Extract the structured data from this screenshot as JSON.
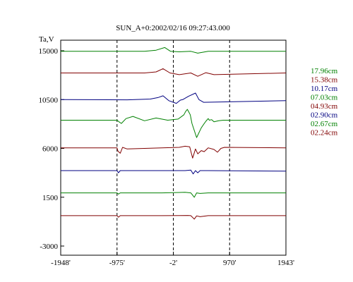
{
  "chart_data": {
    "type": "line",
    "title": "SUN_A+0:2002/02/16 09:27:43.000",
    "ylabel": "Ta,V",
    "xlabel": "",
    "xlim": [
      -1948,
      1943
    ],
    "ylim": [
      -3000,
      15000
    ],
    "xticks": [
      "-1948'",
      "-975'",
      "-2'",
      "970'",
      "1943'"
    ],
    "yticks": [
      "15000",
      "10500",
      "6000",
      "1500",
      "-3000"
    ],
    "grid_x_dashed": [
      -975,
      -2,
      970
    ],
    "legend_position": "right",
    "series": [
      {
        "name": "17.96cm",
        "color": "#008000",
        "baseline": 14950,
        "x": [
          -1948,
          -500,
          -300,
          -150,
          -50,
          100,
          300,
          420,
          600,
          1943
        ],
        "y": [
          14950,
          14950,
          15050,
          15300,
          14950,
          14900,
          14950,
          14780,
          14950,
          14950
        ]
      },
      {
        "name": "15.38cm",
        "color": "#800000",
        "baseline": 12950,
        "x": [
          -1948,
          -500,
          -300,
          -180,
          -60,
          100,
          300,
          420,
          560,
          700,
          1943
        ],
        "y": [
          12950,
          12950,
          13050,
          13350,
          12950,
          12800,
          12950,
          12650,
          12980,
          12800,
          12950
        ]
      },
      {
        "name": "10.17cm",
        "color": "#000080",
        "baseline": 10500,
        "x": [
          -1948,
          -800,
          -400,
          -260,
          -180,
          -80,
          50,
          120,
          160,
          260,
          380,
          440,
          520,
          1943
        ],
        "y": [
          10500,
          10480,
          10550,
          10700,
          10850,
          10400,
          10150,
          10450,
          10500,
          10800,
          11100,
          10500,
          10250,
          10400
        ]
      },
      {
        "name": "07.03cm",
        "color": "#008000",
        "baseline": 8600,
        "x": [
          -1948,
          -975,
          -940,
          -900,
          -820,
          -700,
          -500,
          -300,
          -100,
          80,
          180,
          210,
          240,
          290,
          320,
          400,
          480,
          520,
          560,
          600,
          620,
          660,
          700,
          780,
          860,
          1943
        ],
        "y": [
          8600,
          8600,
          8450,
          8300,
          8750,
          8950,
          8550,
          8800,
          8600,
          8700,
          9100,
          9400,
          9600,
          9100,
          8300,
          7000,
          7900,
          8200,
          8500,
          8750,
          8600,
          8650,
          8450,
          8550,
          8600,
          8600
        ]
      },
      {
        "name": "04.93cm",
        "color": "#800000",
        "baseline": 6050,
        "x": [
          -1948,
          -975,
          -960,
          -920,
          -880,
          -800,
          -500,
          -200,
          100,
          200,
          280,
          330,
          380,
          420,
          480,
          530,
          600,
          700,
          760,
          820,
          880,
          1943
        ],
        "y": [
          6050,
          6050,
          5750,
          5550,
          6100,
          5950,
          6000,
          6050,
          6100,
          6200,
          6150,
          5100,
          5950,
          5500,
          5800,
          5700,
          6050,
          5900,
          5650,
          6000,
          6100,
          6050
        ]
      },
      {
        "name": "02.90cm",
        "color": "#000080",
        "baseline": 3950,
        "x": [
          -1948,
          -975,
          -950,
          -920,
          -800,
          100,
          200,
          300,
          340,
          380,
          420,
          460,
          600,
          1943
        ],
        "y": [
          3950,
          3950,
          3750,
          3950,
          3950,
          3950,
          3950,
          4000,
          3650,
          3950,
          3750,
          3950,
          3950,
          3900
        ]
      },
      {
        "name": "02.67cm",
        "color": "#008000",
        "baseline": 1900,
        "x": [
          -1948,
          -975,
          -950,
          -920,
          -200,
          200,
          300,
          360,
          400,
          460,
          600,
          1943
        ],
        "y": [
          1900,
          1900,
          1780,
          1900,
          1900,
          1950,
          1900,
          1500,
          1900,
          1850,
          1900,
          1900
        ]
      },
      {
        "name": "02.24cm",
        "color": "#800000",
        "baseline": -200,
        "x": [
          -1948,
          -975,
          -950,
          -920,
          -200,
          250,
          300,
          360,
          400,
          460,
          600,
          1943
        ],
        "y": [
          -200,
          -200,
          -340,
          -200,
          -200,
          -180,
          -200,
          -520,
          -220,
          -300,
          -200,
          -200
        ]
      }
    ]
  }
}
